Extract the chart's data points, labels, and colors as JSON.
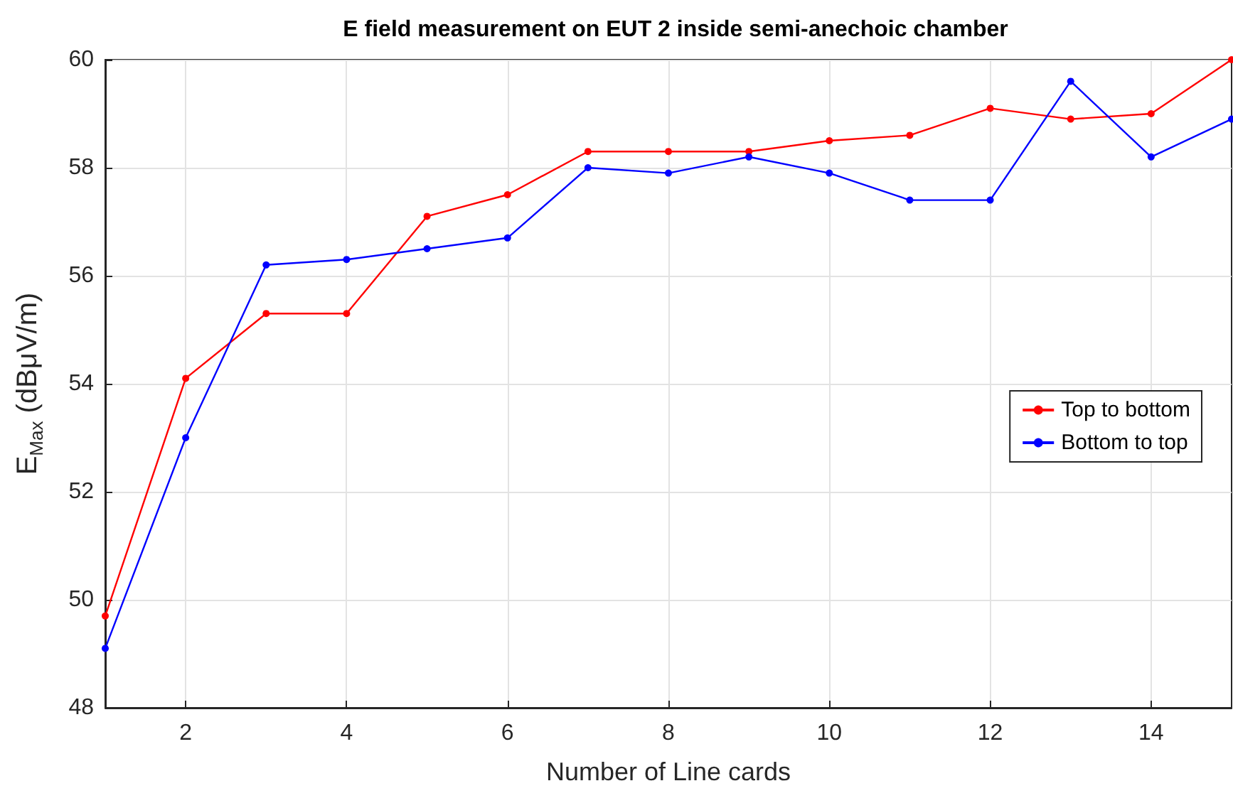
{
  "chart_data": {
    "type": "line",
    "title": "E field measurement on EUT 2 inside semi-anechoic chamber",
    "xlabel": "Number of Line cards",
    "ylabel": "E$_{Max}$ (dBμV/m)",
    "x": [
      1,
      2,
      3,
      4,
      5,
      6,
      7,
      8,
      9,
      10,
      11,
      12,
      13,
      14,
      15
    ],
    "series": [
      {
        "name": "Top to bottom",
        "color": "#ff0000",
        "values": [
          49.7,
          54.1,
          55.3,
          55.3,
          57.1,
          57.5,
          58.3,
          58.3,
          58.3,
          58.5,
          58.6,
          59.1,
          58.9,
          59.0,
          60.0
        ]
      },
      {
        "name": "Bottom to top",
        "color": "#0000ff",
        "values": [
          49.1,
          53.0,
          56.2,
          56.3,
          56.5,
          56.7,
          58.0,
          57.9,
          58.2,
          57.9,
          57.4,
          57.4,
          59.6,
          58.2,
          58.9
        ]
      }
    ],
    "xlim": [
      1,
      15
    ],
    "xticks": [
      2,
      4,
      6,
      8,
      10,
      12,
      14
    ],
    "ylim": [
      48,
      60
    ],
    "yticks": [
      48,
      50,
      52,
      54,
      56,
      58,
      60
    ],
    "grid": true,
    "legend": "right",
    "marker": "circle",
    "line_style": "solid"
  }
}
